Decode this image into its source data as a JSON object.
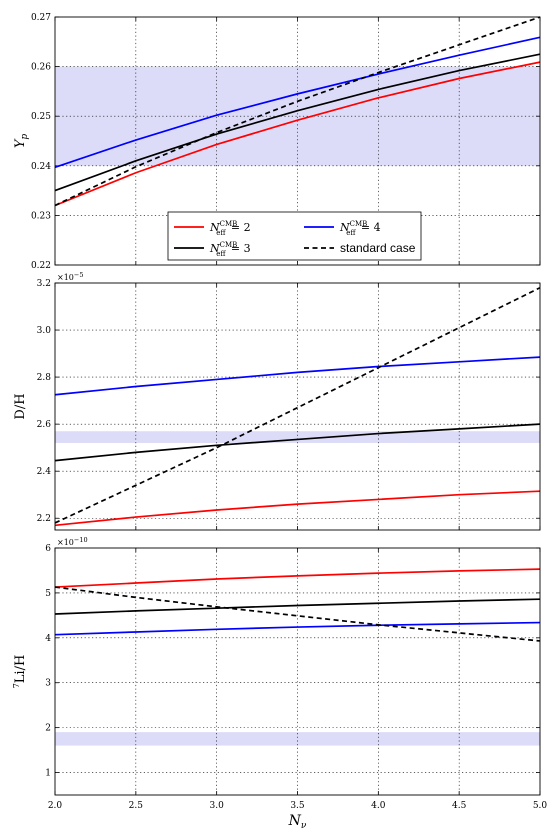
{
  "chart_data": [
    {
      "type": "line",
      "ylabel_base": "Y",
      "ylabel_sub": "p",
      "ylim": [
        0.22,
        0.27
      ],
      "yticks": [
        "0.22",
        "0.23",
        "0.24",
        "0.25",
        "0.26",
        "0.27"
      ],
      "xlim": [
        2.0,
        5.0
      ],
      "grid": true,
      "band": [
        0.24,
        0.26
      ],
      "x": [
        2.0,
        2.5,
        3.0,
        3.5,
        4.0,
        4.5,
        5.0
      ],
      "series": [
        {
          "key": "neff2",
          "color": "#ff0000",
          "dash": false,
          "values": [
            0.232,
            0.2386,
            0.2443,
            0.2492,
            0.2537,
            0.2576,
            0.2609
          ]
        },
        {
          "key": "neff3",
          "color": "#000000",
          "dash": false,
          "values": [
            0.235,
            0.241,
            0.2464,
            0.2511,
            0.2554,
            0.2592,
            0.2625
          ]
        },
        {
          "key": "neff4",
          "color": "#0000ff",
          "dash": false,
          "values": [
            0.2397,
            0.2452,
            0.2502,
            0.2545,
            0.2585,
            0.2623,
            0.2659
          ]
        },
        {
          "key": "std",
          "color": "#000000",
          "dash": true,
          "values": [
            0.232,
            0.2398,
            0.2467,
            0.253,
            0.2588,
            0.2644,
            0.27
          ]
        }
      ]
    },
    {
      "type": "line",
      "ylabel": "D/H",
      "exponent_base": "×10",
      "exponent_power": "−5",
      "ylim": [
        2.15,
        3.2
      ],
      "yticks": [
        "2.2",
        "2.4",
        "2.6",
        "2.8",
        "3.0",
        "3.2"
      ],
      "xlim": [
        2.0,
        5.0
      ],
      "grid": true,
      "band": [
        2.52,
        2.57
      ],
      "x": [
        2.0,
        2.5,
        3.0,
        3.5,
        4.0,
        4.5,
        5.0
      ],
      "series": [
        {
          "key": "neff2",
          "color": "#ff0000",
          "dash": false,
          "values": [
            2.17,
            2.205,
            2.235,
            2.26,
            2.28,
            2.3,
            2.315
          ]
        },
        {
          "key": "neff3",
          "color": "#000000",
          "dash": false,
          "values": [
            2.445,
            2.48,
            2.51,
            2.535,
            2.56,
            2.58,
            2.6
          ]
        },
        {
          "key": "neff4",
          "color": "#0000ff",
          "dash": false,
          "values": [
            2.725,
            2.76,
            2.79,
            2.82,
            2.845,
            2.865,
            2.885
          ]
        },
        {
          "key": "std",
          "color": "#000000",
          "dash": true,
          "values": [
            2.18,
            2.34,
            2.5,
            2.67,
            2.84,
            3.01,
            3.18
          ]
        }
      ]
    },
    {
      "type": "line",
      "ylabel": "Li/H",
      "ylabel_sup": "7",
      "exponent_base": "×10",
      "exponent_power": "−10",
      "ylim": [
        0.5,
        6.0
      ],
      "yticks": [
        "1",
        "2",
        "3",
        "4",
        "5",
        "6"
      ],
      "xlim": [
        2.0,
        5.0
      ],
      "xlabel_base": "N",
      "xlabel_sub": "ν",
      "xticks": [
        "2.0",
        "2.5",
        "3.0",
        "3.5",
        "4.0",
        "4.5",
        "5.0"
      ],
      "grid": true,
      "band": [
        1.6,
        1.9
      ],
      "x": [
        2.0,
        2.5,
        3.0,
        3.5,
        4.0,
        4.5,
        5.0
      ],
      "series": [
        {
          "key": "neff2",
          "color": "#ff0000",
          "dash": false,
          "values": [
            5.13,
            5.22,
            5.31,
            5.38,
            5.44,
            5.49,
            5.53
          ]
        },
        {
          "key": "neff3",
          "color": "#000000",
          "dash": false,
          "values": [
            4.53,
            4.6,
            4.66,
            4.72,
            4.77,
            4.82,
            4.86
          ]
        },
        {
          "key": "neff4",
          "color": "#0000ff",
          "dash": false,
          "values": [
            4.07,
            4.13,
            4.19,
            4.24,
            4.28,
            4.31,
            4.34
          ]
        },
        {
          "key": "std",
          "color": "#000000",
          "dash": true,
          "values": [
            5.13,
            4.9,
            4.69,
            4.49,
            4.29,
            4.11,
            3.93
          ]
        }
      ]
    }
  ],
  "legend": {
    "entries": [
      {
        "key": "neff2",
        "base": "N",
        "sub": "eff",
        "sup": "CMB",
        "tail": " = 2"
      },
      {
        "key": "neff4",
        "base": "N",
        "sub": "eff",
        "sup": "CMB",
        "tail": " = 4"
      },
      {
        "key": "neff3",
        "base": "N",
        "sub": "eff",
        "sup": "CMB",
        "tail": " = 3"
      },
      {
        "key": "std",
        "label": "standard case"
      }
    ]
  }
}
